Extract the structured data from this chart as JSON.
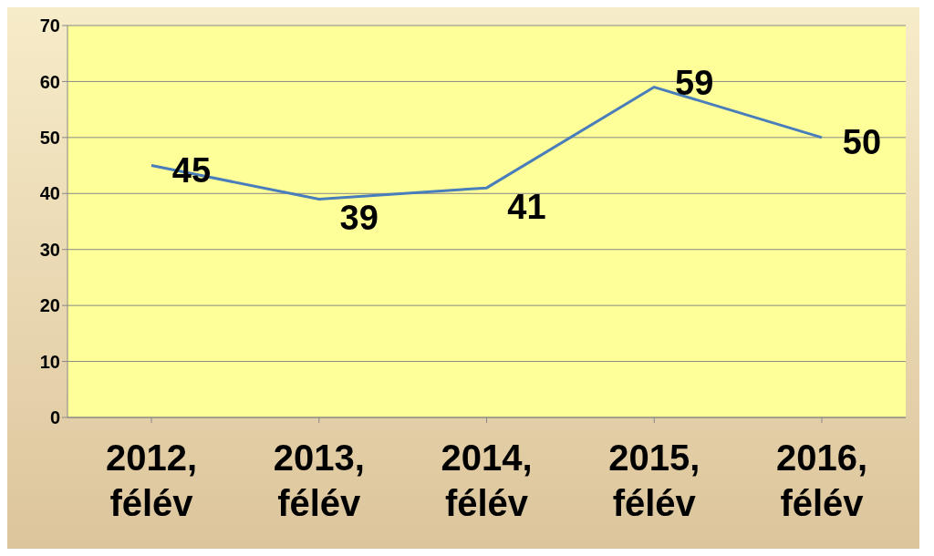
{
  "chart_data": {
    "type": "line",
    "categories": [
      "2012, félév",
      "2013, félév",
      "2014, félév",
      "2015, félév",
      "2016, félév"
    ],
    "series": [
      {
        "color": "#4a7ebb",
        "values": [
          45,
          39,
          41,
          59,
          50
        ]
      }
    ],
    "ylim": [
      0,
      70
    ],
    "yticks": [
      0,
      10,
      20,
      30,
      40,
      50,
      60,
      70
    ],
    "grid": "y",
    "data_labels": true,
    "marker": "none",
    "legend": false
  }
}
